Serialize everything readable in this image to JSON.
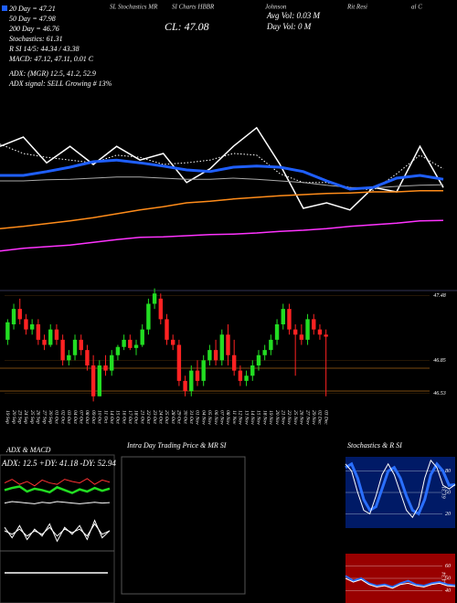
{
  "header": {
    "top_line": [
      "SL Stochastics MR",
      "SI Charts HBBR",
      "Johnson",
      "Rit Resi",
      "al C"
    ],
    "stats": [
      "20 Day = 47.21",
      "50 Day = 47.98",
      "200 Day = 46.76",
      "Stochastics: 61.31",
      "R SI 14/5: 44.34 / 43.38",
      "MACD: 47.12, 47.11, 0.01 C",
      "ADX: (MGR) 12.5, 41.2, 52.9",
      "ADX signal: SELL Growing # 13%"
    ],
    "cl": "CL: 47.08",
    "avg_vol": "Avg Vol: 0.03 M",
    "day_vol": "Day Vol: 0 M"
  },
  "chart_data": [
    {
      "type": "line",
      "ylim": [
        46.0,
        48.5
      ],
      "series": [
        {
          "color": "#ffffff",
          "width": 1.5,
          "values": [
            48.08,
            48.25,
            47.78,
            48.08,
            47.75,
            48.08,
            47.83,
            47.95,
            47.42,
            47.67,
            48.08,
            48.42,
            47.75,
            46.95,
            47.05,
            46.92,
            47.33,
            47.25,
            48.08,
            47.33
          ]
        },
        {
          "color": "#ffffff",
          "width": 1,
          "style": "dotted",
          "values": [
            48.12,
            47.95,
            47.88,
            47.83,
            47.78,
            47.92,
            47.88,
            47.75,
            47.78,
            47.83,
            47.95,
            47.92,
            47.58,
            47.42,
            47.42,
            47.33,
            47.28,
            47.58,
            47.92,
            47.67
          ]
        },
        {
          "color": "#aaaaaa",
          "width": 1,
          "values": [
            47.45,
            47.45,
            47.47,
            47.48,
            47.5,
            47.52,
            47.52,
            47.5,
            47.48,
            47.48,
            47.5,
            47.48,
            47.45,
            47.42,
            47.37,
            47.33,
            47.32,
            47.35,
            47.37,
            47.38
          ]
        },
        {
          "color": "#1f5fff",
          "width": 3,
          "values": [
            47.55,
            47.55,
            47.62,
            47.7,
            47.8,
            47.83,
            47.78,
            47.72,
            47.65,
            47.62,
            47.7,
            47.72,
            47.7,
            47.62,
            47.45,
            47.3,
            47.33,
            47.5,
            47.55,
            47.48
          ]
        },
        {
          "color": "#ff8c1a",
          "width": 1.5,
          "values": [
            46.58,
            46.62,
            46.67,
            46.72,
            46.78,
            46.85,
            46.92,
            46.98,
            47.05,
            47.08,
            47.12,
            47.15,
            47.18,
            47.2,
            47.22,
            47.23,
            47.25,
            47.25,
            47.27,
            47.27
          ]
        },
        {
          "color": "#ff33ff",
          "width": 1.5,
          "values": [
            46.17,
            46.22,
            46.25,
            46.28,
            46.33,
            46.38,
            46.42,
            46.43,
            46.45,
            46.47,
            46.48,
            46.5,
            46.53,
            46.55,
            46.58,
            46.62,
            46.65,
            46.68,
            46.72,
            46.73
          ]
        }
      ]
    },
    {
      "type": "candlestick",
      "ylim": [
        46.4,
        47.6
      ],
      "yticks": [
        47.48,
        46.85,
        46.53
      ],
      "up_color": "#22dd22",
      "down_color": "#ff2222",
      "categories": [
        "19 Sep",
        "20 Sep",
        "23 Sep",
        "24 Sep",
        "25 Sep",
        "26 Sep",
        "27 Sep",
        "30 Sep",
        "01 Oct",
        "02 Oct",
        "03 Oct",
        "04 Oct",
        "07 Oct",
        "08 Oct",
        "09 Oct",
        "10 Oct",
        "11 Oct",
        "14 Oct",
        "15 Oct",
        "16 Oct",
        "17 Oct",
        "18 Oct",
        "21 Oct",
        "22 Oct",
        "23 Oct",
        "24 Oct",
        "25 Oct",
        "28 Oct",
        "29 Oct",
        "30 Oct",
        "31 Oct",
        "01 Nov",
        "04 Nov",
        "05 Nov",
        "06 Nov",
        "07 Nov",
        "08 Nov",
        "11 Nov",
        "12 Nov",
        "13 Nov",
        "14 Nov",
        "15 Nov",
        "18 Nov",
        "19 Nov",
        "20 Nov",
        "21 Nov",
        "22 Nov",
        "25 Nov",
        "26 Nov",
        "27 Nov",
        "29 Nov",
        "02 Dec",
        "03 Dec"
      ],
      "candles": [
        [
          47.05,
          47.25,
          47.0,
          47.22
        ],
        [
          47.2,
          47.4,
          47.15,
          47.35
        ],
        [
          47.35,
          47.45,
          47.2,
          47.25
        ],
        [
          47.25,
          47.3,
          47.1,
          47.15
        ],
        [
          47.15,
          47.25,
          47.1,
          47.2
        ],
        [
          47.2,
          47.25,
          47.0,
          47.05
        ],
        [
          47.05,
          47.1,
          46.95,
          47.0
        ],
        [
          47.0,
          47.2,
          46.98,
          47.15
        ],
        [
          47.15,
          47.2,
          47.0,
          47.05
        ],
        [
          47.05,
          47.1,
          46.8,
          46.85
        ],
        [
          46.85,
          46.95,
          46.8,
          46.9
        ],
        [
          46.9,
          47.1,
          46.85,
          47.05
        ],
        [
          47.05,
          47.1,
          46.9,
          46.95
        ],
        [
          46.95,
          47.0,
          46.75,
          46.8
        ],
        [
          46.8,
          46.9,
          46.45,
          46.5
        ],
        [
          46.5,
          46.85,
          46.5,
          46.8
        ],
        [
          46.8,
          46.9,
          46.7,
          46.75
        ],
        [
          46.75,
          46.95,
          46.7,
          46.9
        ],
        [
          46.9,
          47.0,
          46.85,
          46.98
        ],
        [
          46.98,
          47.1,
          46.95,
          47.05
        ],
        [
          47.05,
          47.1,
          46.95,
          46.97
        ],
        [
          46.97,
          47.05,
          46.9,
          47.0
        ],
        [
          47.0,
          47.2,
          46.98,
          47.15
        ],
        [
          47.15,
          47.45,
          47.1,
          47.4
        ],
        [
          47.4,
          47.55,
          47.35,
          47.5
        ],
        [
          47.45,
          47.5,
          47.2,
          47.25
        ],
        [
          47.25,
          47.3,
          47.0,
          47.05
        ],
        [
          47.05,
          47.1,
          46.95,
          47.0
        ],
        [
          47.0,
          47.05,
          46.6,
          46.65
        ],
        [
          46.65,
          46.7,
          46.5,
          46.55
        ],
        [
          46.55,
          46.8,
          46.5,
          46.75
        ],
        [
          46.75,
          46.85,
          46.6,
          46.65
        ],
        [
          46.65,
          46.9,
          46.6,
          46.85
        ],
        [
          46.85,
          47.0,
          46.8,
          46.95
        ],
        [
          46.95,
          47.05,
          46.8,
          46.85
        ],
        [
          46.85,
          47.15,
          46.8,
          47.1
        ],
        [
          47.1,
          47.2,
          46.8,
          46.9
        ],
        [
          46.9,
          47.05,
          46.7,
          46.75
        ],
        [
          46.75,
          46.8,
          46.6,
          46.65
        ],
        [
          46.65,
          46.75,
          46.6,
          46.7
        ],
        [
          46.7,
          46.85,
          46.65,
          46.8
        ],
        [
          46.8,
          46.95,
          46.75,
          46.9
        ],
        [
          46.9,
          47.0,
          46.85,
          46.95
        ],
        [
          46.95,
          47.1,
          46.9,
          47.05
        ],
        [
          47.05,
          47.25,
          47.0,
          47.2
        ],
        [
          47.2,
          47.4,
          47.15,
          47.35
        ],
        [
          47.35,
          47.4,
          47.1,
          47.15
        ],
        [
          47.15,
          47.2,
          46.7,
          47.1
        ],
        [
          47.1,
          47.2,
          47.0,
          47.05
        ],
        [
          47.05,
          47.3,
          47.0,
          47.25
        ],
        [
          47.25,
          47.3,
          47.1,
          47.15
        ],
        [
          47.15,
          47.2,
          47.05,
          47.1
        ],
        [
          47.1,
          47.15,
          46.5,
          47.08
        ]
      ]
    },
    {
      "type": "line",
      "title": "ADX & MACD",
      "annotation": "ADX: 12.5  +DY: 41.18  -DY: 52.94",
      "ylim": [
        0,
        70
      ],
      "series": [
        {
          "color": "#ff3333",
          "width": 1,
          "values": [
            40,
            45,
            38,
            42,
            36,
            44,
            40,
            38,
            45,
            42,
            40,
            46,
            38,
            44,
            41
          ]
        },
        {
          "color": "#22dd22",
          "width": 2.5,
          "values": [
            30,
            33,
            35,
            28,
            32,
            30,
            27,
            34,
            30,
            26,
            31,
            28,
            33,
            29,
            32
          ]
        },
        {
          "color": "#ffffff",
          "width": 1,
          "values": [
            12,
            14,
            13,
            12,
            11,
            13,
            12,
            14,
            13,
            12,
            11,
            12,
            13,
            12,
            12.5
          ]
        }
      ]
    },
    {
      "type": "line",
      "ylim": [
        -1,
        1
      ],
      "series": [
        {
          "color": "#ffffff",
          "width": 1,
          "values": [
            0.2,
            -0.4,
            0.3,
            -0.5,
            0.1,
            -0.3,
            0.4,
            -0.6,
            0.2,
            -0.2,
            0.3,
            -0.5,
            0.6,
            -0.4,
            0.01
          ]
        },
        {
          "color": "#ffffff",
          "width": 1,
          "values": [
            0.0,
            -0.2,
            0.1,
            -0.3,
            0.0,
            -0.2,
            0.2,
            -0.3,
            0.1,
            -0.1,
            0.1,
            -0.3,
            0.4,
            -0.2,
            0.0
          ]
        }
      ]
    },
    {
      "type": "empty",
      "title": "Intra Day Trading Price & MR          SI"
    },
    {
      "type": "line",
      "title": "Stochastics & R          SI",
      "annotation": "61.31",
      "ylim": [
        0,
        100
      ],
      "yticks": [
        80,
        50,
        20
      ],
      "background": "#001a66",
      "series": [
        {
          "color": "#2a6fff",
          "width": 3,
          "values": [
            85,
            90,
            70,
            40,
            25,
            30,
            55,
            80,
            85,
            70,
            45,
            25,
            20,
            40,
            75,
            90,
            80,
            60,
            61
          ]
        },
        {
          "color": "#ffffff",
          "width": 1,
          "values": [
            90,
            80,
            50,
            25,
            20,
            45,
            75,
            90,
            75,
            50,
            25,
            15,
            30,
            70,
            95,
            85,
            60,
            55,
            61
          ]
        }
      ]
    },
    {
      "type": "line",
      "annotation": "44.34",
      "ylim": [
        30,
        70
      ],
      "yticks": [
        60,
        50,
        40
      ],
      "background": "#990000",
      "series": [
        {
          "color": "#2a6fff",
          "width": 2,
          "values": [
            52,
            48,
            50,
            46,
            44,
            45,
            43,
            46,
            48,
            45,
            44,
            46,
            47,
            45,
            44.34
          ]
        },
        {
          "color": "#ffffff",
          "width": 1,
          "values": [
            50,
            47,
            49,
            45,
            43,
            44,
            42,
            45,
            46,
            44,
            43,
            45,
            46,
            44,
            43.38
          ]
        }
      ]
    }
  ]
}
